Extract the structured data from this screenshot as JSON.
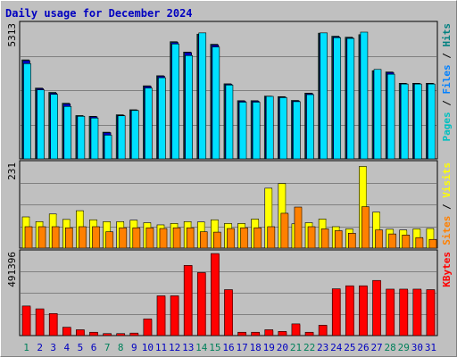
{
  "chart_data": {
    "type": "bar",
    "title": "Daily usage for December 2024",
    "categories": [
      "1",
      "2",
      "3",
      "4",
      "5",
      "6",
      "7",
      "8",
      "9",
      "10",
      "11",
      "12",
      "13",
      "14",
      "15",
      "16",
      "17",
      "18",
      "19",
      "20",
      "21",
      "22",
      "23",
      "24",
      "25",
      "26",
      "27",
      "28",
      "29",
      "30",
      "31"
    ],
    "weekend_days": [
      "1",
      "7",
      "8",
      "14",
      "15",
      "21",
      "22",
      "28",
      "29"
    ],
    "panels": [
      {
        "name": "hits-files-pages",
        "ymax_label": "5313",
        "ymax": 5313,
        "side_label": [
          {
            "text": "Pages",
            "color": "#00c0c0"
          },
          {
            "text": " / ",
            "color": "#000000"
          },
          {
            "text": "Files",
            "color": "#0080ff"
          },
          {
            "text": " / ",
            "color": "#000000"
          },
          {
            "text": "Hits",
            "color": "#008080"
          }
        ],
        "series": [
          {
            "name": "Hits",
            "color": "#008060",
            "values": [
              3930,
              2810,
              2640,
              2210,
              1720,
              1690,
              1060,
              1750,
              1950,
              2900,
              3300,
              4650,
              4240,
              4950,
              4550,
              2980,
              2310,
              2310,
              2490,
              2470,
              2320,
              2610,
              4990,
              4870,
              4830,
              4930,
              3500,
              3450,
              3000,
              3000,
              3000
            ]
          },
          {
            "name": "Files",
            "color": "#0000c0",
            "values": [
              3900,
              2790,
              2610,
              2180,
              1700,
              1670,
              1040,
              1730,
              1930,
              2880,
              3280,
              4620,
              4220,
              4920,
              4520,
              2960,
              2290,
              2290,
              2470,
              2450,
              2300,
              2590,
              4960,
              4840,
              4800,
              4900,
              3480,
              3430,
              2980,
              2980,
              2980
            ]
          },
          {
            "name": "Pages",
            "color": "#00e0ff",
            "values": [
              3780,
              2740,
              2560,
              2080,
              1690,
              1620,
              940,
              1710,
              1920,
              2810,
              3220,
              4560,
              4100,
              5000,
              4440,
              2930,
              2250,
              2250,
              2480,
              2430,
              2270,
              2550,
              5000,
              4810,
              4780,
              5030,
              3550,
              3360,
              2970,
              2970,
              2970
            ]
          }
        ]
      },
      {
        "name": "visits-sites",
        "ymax_label": "231",
        "ymax": 231,
        "side_label": [
          {
            "text": "Sites",
            "color": "#ff8000"
          },
          {
            "text": " / ",
            "color": "#000000"
          },
          {
            "text": "Visits",
            "color": "#ffff00"
          }
        ],
        "series": [
          {
            "name": "Visits",
            "color": "#ffff00",
            "values": [
              86,
              73,
              94,
              79,
              103,
              78,
              73,
              73,
              77,
              70,
              64,
              68,
              73,
              72,
              78,
              68,
              68,
              80,
              165,
              178,
              67,
              70,
              80,
              59,
              53,
              225,
              99,
              52,
              50,
              53,
              54
            ]
          },
          {
            "name": "Sites",
            "color": "#ff8000",
            "values": [
              59,
              59,
              59,
              56,
              59,
              59,
              45,
              56,
              56,
              56,
              54,
              56,
              56,
              45,
              44,
              54,
              56,
              56,
              59,
              96,
              113,
              59,
              53,
              48,
              41,
              114,
              50,
              39,
              36,
              29,
              24
            ]
          }
        ]
      },
      {
        "name": "kbytes",
        "ymax_label": "491396",
        "ymax": 491396,
        "side_label": [
          {
            "text": "KBytes",
            "color": "#ff0000"
          }
        ],
        "series": [
          {
            "name": "KBytes",
            "color": "#ff0000",
            "values": [
              177000,
              160000,
              132000,
              50000,
              35000,
              20000,
              12000,
              12000,
              15000,
              100000,
              238000,
              238000,
              420000,
              377000,
              491000,
              275000,
              20000,
              20000,
              35000,
              25000,
              70000,
              20000,
              62000,
              280000,
              298000,
              298000,
              330000,
              278000,
              278000,
              278000,
              275000
            ]
          }
        ]
      }
    ]
  }
}
